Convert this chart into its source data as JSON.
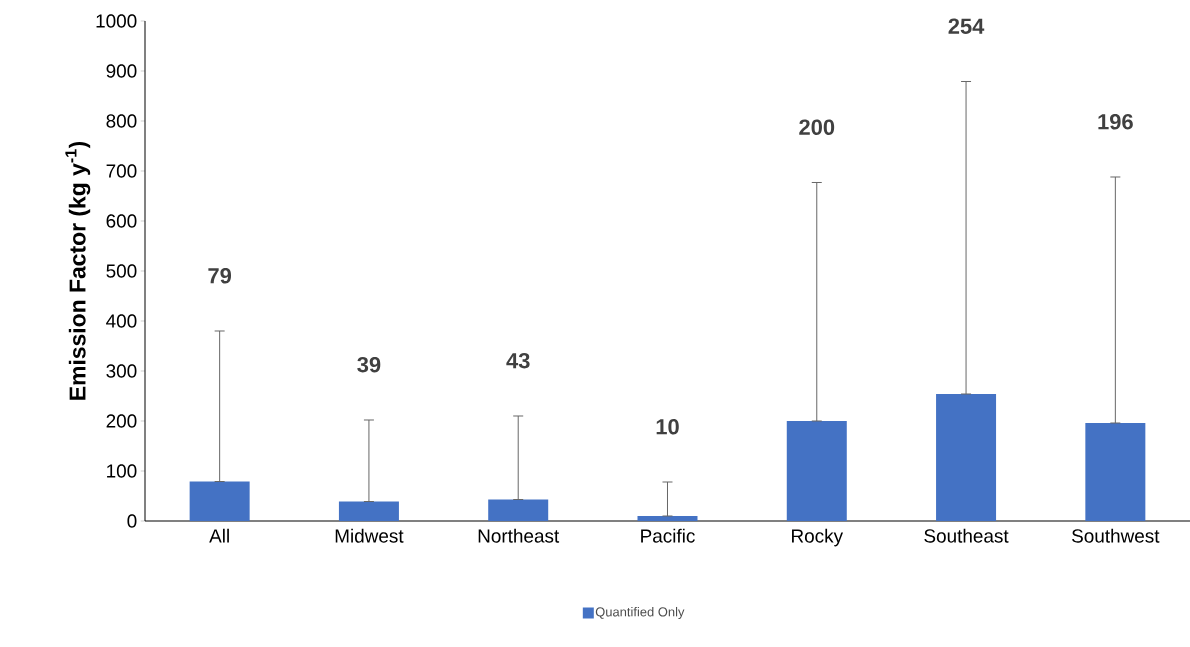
{
  "chart_data": {
    "type": "bar",
    "ylabel": "Emission Factor (kg y$^{-1}$)",
    "categories": [
      "All",
      "Midwest",
      "Northeast",
      "Pacific",
      "Rocky",
      "Southeast",
      "Southwest"
    ],
    "series": [
      {
        "name": "Quantified Only",
        "color": "#4472c4",
        "values": [
          79,
          39,
          43,
          10,
          200,
          254,
          196
        ],
        "errors": [
          [
            79,
            380
          ],
          [
            39,
            202
          ],
          [
            43,
            210
          ],
          [
            10,
            78
          ],
          [
            200,
            677
          ],
          [
            254,
            879
          ],
          [
            196,
            688
          ]
        ]
      }
    ],
    "value_labels": [
      "79",
      "39",
      "43",
      "10",
      "200",
      "254",
      "196"
    ],
    "ylim": [
      0,
      1000
    ],
    "yticks": [
      0,
      100,
      200,
      300,
      400,
      500,
      600,
      700,
      800,
      900,
      1000
    ],
    "grid": false,
    "legend": "bottom"
  }
}
